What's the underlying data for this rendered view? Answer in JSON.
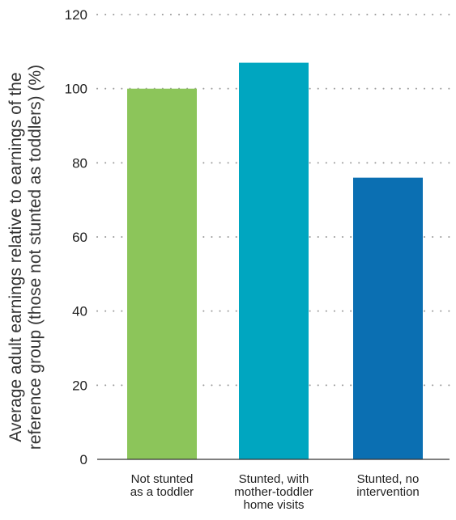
{
  "chart_data": {
    "type": "bar",
    "title": "",
    "xlabel": "",
    "ylabel_lines": [
      "Average adult earnings relative to earnings of the",
      "reference group (those not stunted as toddlers) (%)"
    ],
    "categories": [
      [
        "Not stunted",
        "as a toddler"
      ],
      [
        "Stunted, with",
        "mother-toddler",
        "home visits"
      ],
      [
        "Stunted, no",
        "intervention"
      ]
    ],
    "values": [
      100,
      107,
      76
    ],
    "colors": [
      "#8cc55a",
      "#00a6c0",
      "#0b6fb2"
    ],
    "ylim": [
      0,
      120
    ],
    "yticks": [
      0,
      20,
      40,
      60,
      80,
      100,
      120
    ],
    "grid": true
  }
}
